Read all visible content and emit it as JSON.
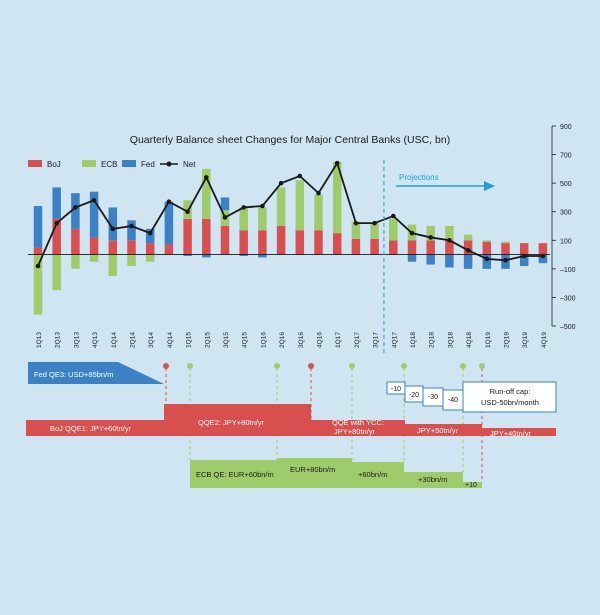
{
  "chart_data": {
    "type": "bar",
    "title": "Quarterly Balance sheet Changes for Major Central Banks (USC, bn)",
    "xlabel": "",
    "ylabel": "",
    "ylim": [
      -500,
      900
    ],
    "y_ticks": [
      "900",
      "700",
      "500",
      "300",
      "100",
      "–100",
      "–300",
      "–500"
    ],
    "y_tick_values": [
      900,
      700,
      500,
      300,
      100,
      -100,
      -300,
      -500
    ],
    "stacked": true,
    "categories": [
      "1Q13",
      "2Q13",
      "3Q13",
      "4Q13",
      "1Q14",
      "2Q14",
      "3Q14",
      "4Q14",
      "1Q15",
      "2Q15",
      "3Q15",
      "4Q15",
      "1Q16",
      "2Q16",
      "3Q16",
      "4Q16",
      "1Q17",
      "2Q17",
      "3Q17",
      "4Q17",
      "1Q18",
      "2Q18",
      "3Q18",
      "4Q18",
      "1Q19",
      "2Q19",
      "3Q19",
      "4Q19"
    ],
    "series": [
      {
        "name": "BoJ",
        "color": "#d94f4f",
        "values": [
          50,
          250,
          180,
          120,
          100,
          100,
          80,
          70,
          250,
          250,
          200,
          170,
          170,
          200,
          170,
          170,
          150,
          110,
          110,
          100,
          100,
          100,
          100,
          100,
          90,
          80,
          80,
          80
        ]
      },
      {
        "name": "ECB",
        "color": "#9fcc6b",
        "values": [
          -420,
          -250,
          -100,
          -50,
          -150,
          -80,
          -50,
          0,
          130,
          350,
          110,
          160,
          160,
          270,
          350,
          250,
          500,
          120,
          110,
          150,
          110,
          100,
          100,
          40,
          10,
          10,
          0,
          0
        ]
      },
      {
        "name": "Fed",
        "color": "#3a82c4",
        "values": [
          290,
          220,
          250,
          320,
          230,
          140,
          100,
          300,
          -10,
          -20,
          90,
          -10,
          -20,
          0,
          0,
          0,
          0,
          0,
          0,
          0,
          -50,
          -70,
          -90,
          -100,
          -100,
          -100,
          -80,
          -60
        ]
      }
    ],
    "net": {
      "name": "Net",
      "color": "#1a1a1a",
      "values": [
        -80,
        220,
        330,
        380,
        180,
        200,
        150,
        370,
        300,
        540,
        260,
        330,
        340,
        500,
        550,
        430,
        640,
        220,
        220,
        270,
        150,
        120,
        100,
        30,
        -30,
        -40,
        -10,
        -10
      ]
    },
    "legend": [
      "BoJ",
      "ECB",
      "Fed",
      "Net"
    ],
    "legend_placement": "top-left",
    "projection_label": "Projections",
    "projection_start": "3Q17",
    "annotations": {
      "fed_qe3": "Fed QE3: USD+85bn/m",
      "boj_qqe1": "BoJ QQE1: JPY+60tn/yr",
      "boj_qqe2": "QQE2: JPY+80tn/yr",
      "boj_qqe_ycc_1": "QQE with YCC:",
      "boj_qqe_ycc_2": "JPY+80tn/yr",
      "boj_50": "JPY+50tn/yr",
      "boj_40": "JPY+40tn/yr",
      "ecb_qe": "ECB QE: EUR+60bn/m",
      "ecb_80": "EUR+80bn/m",
      "ecb_60": "+60bn/m",
      "ecb_30": "+30bn/m",
      "ecb_10": "+10",
      "fed_runoff_steps": [
        "-10",
        "-20",
        "-30",
        "-40"
      ],
      "fed_runoff_cap_1": "Run-off cap:",
      "fed_runoff_cap_2": "USD-50bn/month"
    }
  },
  "colors": {
    "background": "#cfe5f2",
    "boj": "#d94f4f",
    "ecb": "#9fcc6b",
    "fed": "#3a82c4",
    "projection": "#1e9fd6"
  }
}
